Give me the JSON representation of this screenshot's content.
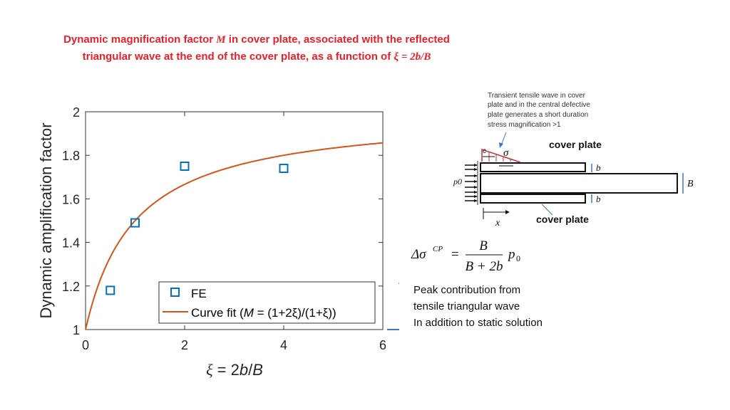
{
  "slide": {
    "title_line1_pre": "Dynamic magnification factor ",
    "title_M": "M",
    "title_line1_post": " in cover plate, associated with the reflected",
    "title_line2_pre": "triangular wave at the end of the cover plate, as a function of ",
    "title_xi_expr": "ξ = 2b/B"
  },
  "chart_data": {
    "type": "scatter",
    "title": "",
    "ylabel": "Dynamic amplification factor",
    "xlabel": "ξ = 2b/B",
    "xlim": [
      0,
      6
    ],
    "ylim": [
      1,
      2
    ],
    "xticks": [
      "0",
      "2",
      "4",
      "6"
    ],
    "yticks": [
      "1",
      "1.2",
      "1.4",
      "1.6",
      "1.8",
      "2"
    ],
    "grid": false,
    "legend_position": "bottom-right",
    "series": [
      {
        "name": "FE",
        "type": "scatter",
        "marker": "square",
        "color": "#0072bd",
        "x": [
          0.5,
          1,
          2,
          4
        ],
        "y": [
          1.18,
          1.49,
          1.75,
          1.74
        ]
      },
      {
        "name": "Curve fit (M = (1+2ξ)/(1+ξ))",
        "type": "line",
        "color": "#d95319",
        "formula": "(1+2ξ)/(1+ξ)"
      }
    ],
    "legend": {
      "fe": "FE",
      "fit_pre": "Curve fit (",
      "fit_M": "M",
      "fit_post": " = (1+2ξ)/(1+ξ))"
    }
  },
  "diagram": {
    "annotation": [
      "Transient tensile wave in cover",
      "plate and in the central defective",
      "plate generates a short duration",
      "stress magnification >1"
    ],
    "label_cover_top": "cover plate",
    "label_cover_bottom": "cover plate",
    "label_sigma": "σ",
    "label_c": "c",
    "label_b_top": "b",
    "label_b_bottom": "b",
    "label_B": "B",
    "label_p0": "p0",
    "label_x": "x"
  },
  "formula": {
    "lhs": "Δσ",
    "lhs_sup": "CP",
    "eq": "=",
    "numerator": "B",
    "denominator": "B + 2b",
    "p0": "p",
    "p0_sub": "0"
  },
  "note": {
    "lines": [
      "Peak contribution from",
      "tensile triangular wave",
      "In addition to static solution"
    ]
  },
  "colors": {
    "title": "#e8202a",
    "fe": "#0072bd",
    "curve": "#d95319",
    "arrow": "#4472c4",
    "wave": "#c0303a"
  }
}
